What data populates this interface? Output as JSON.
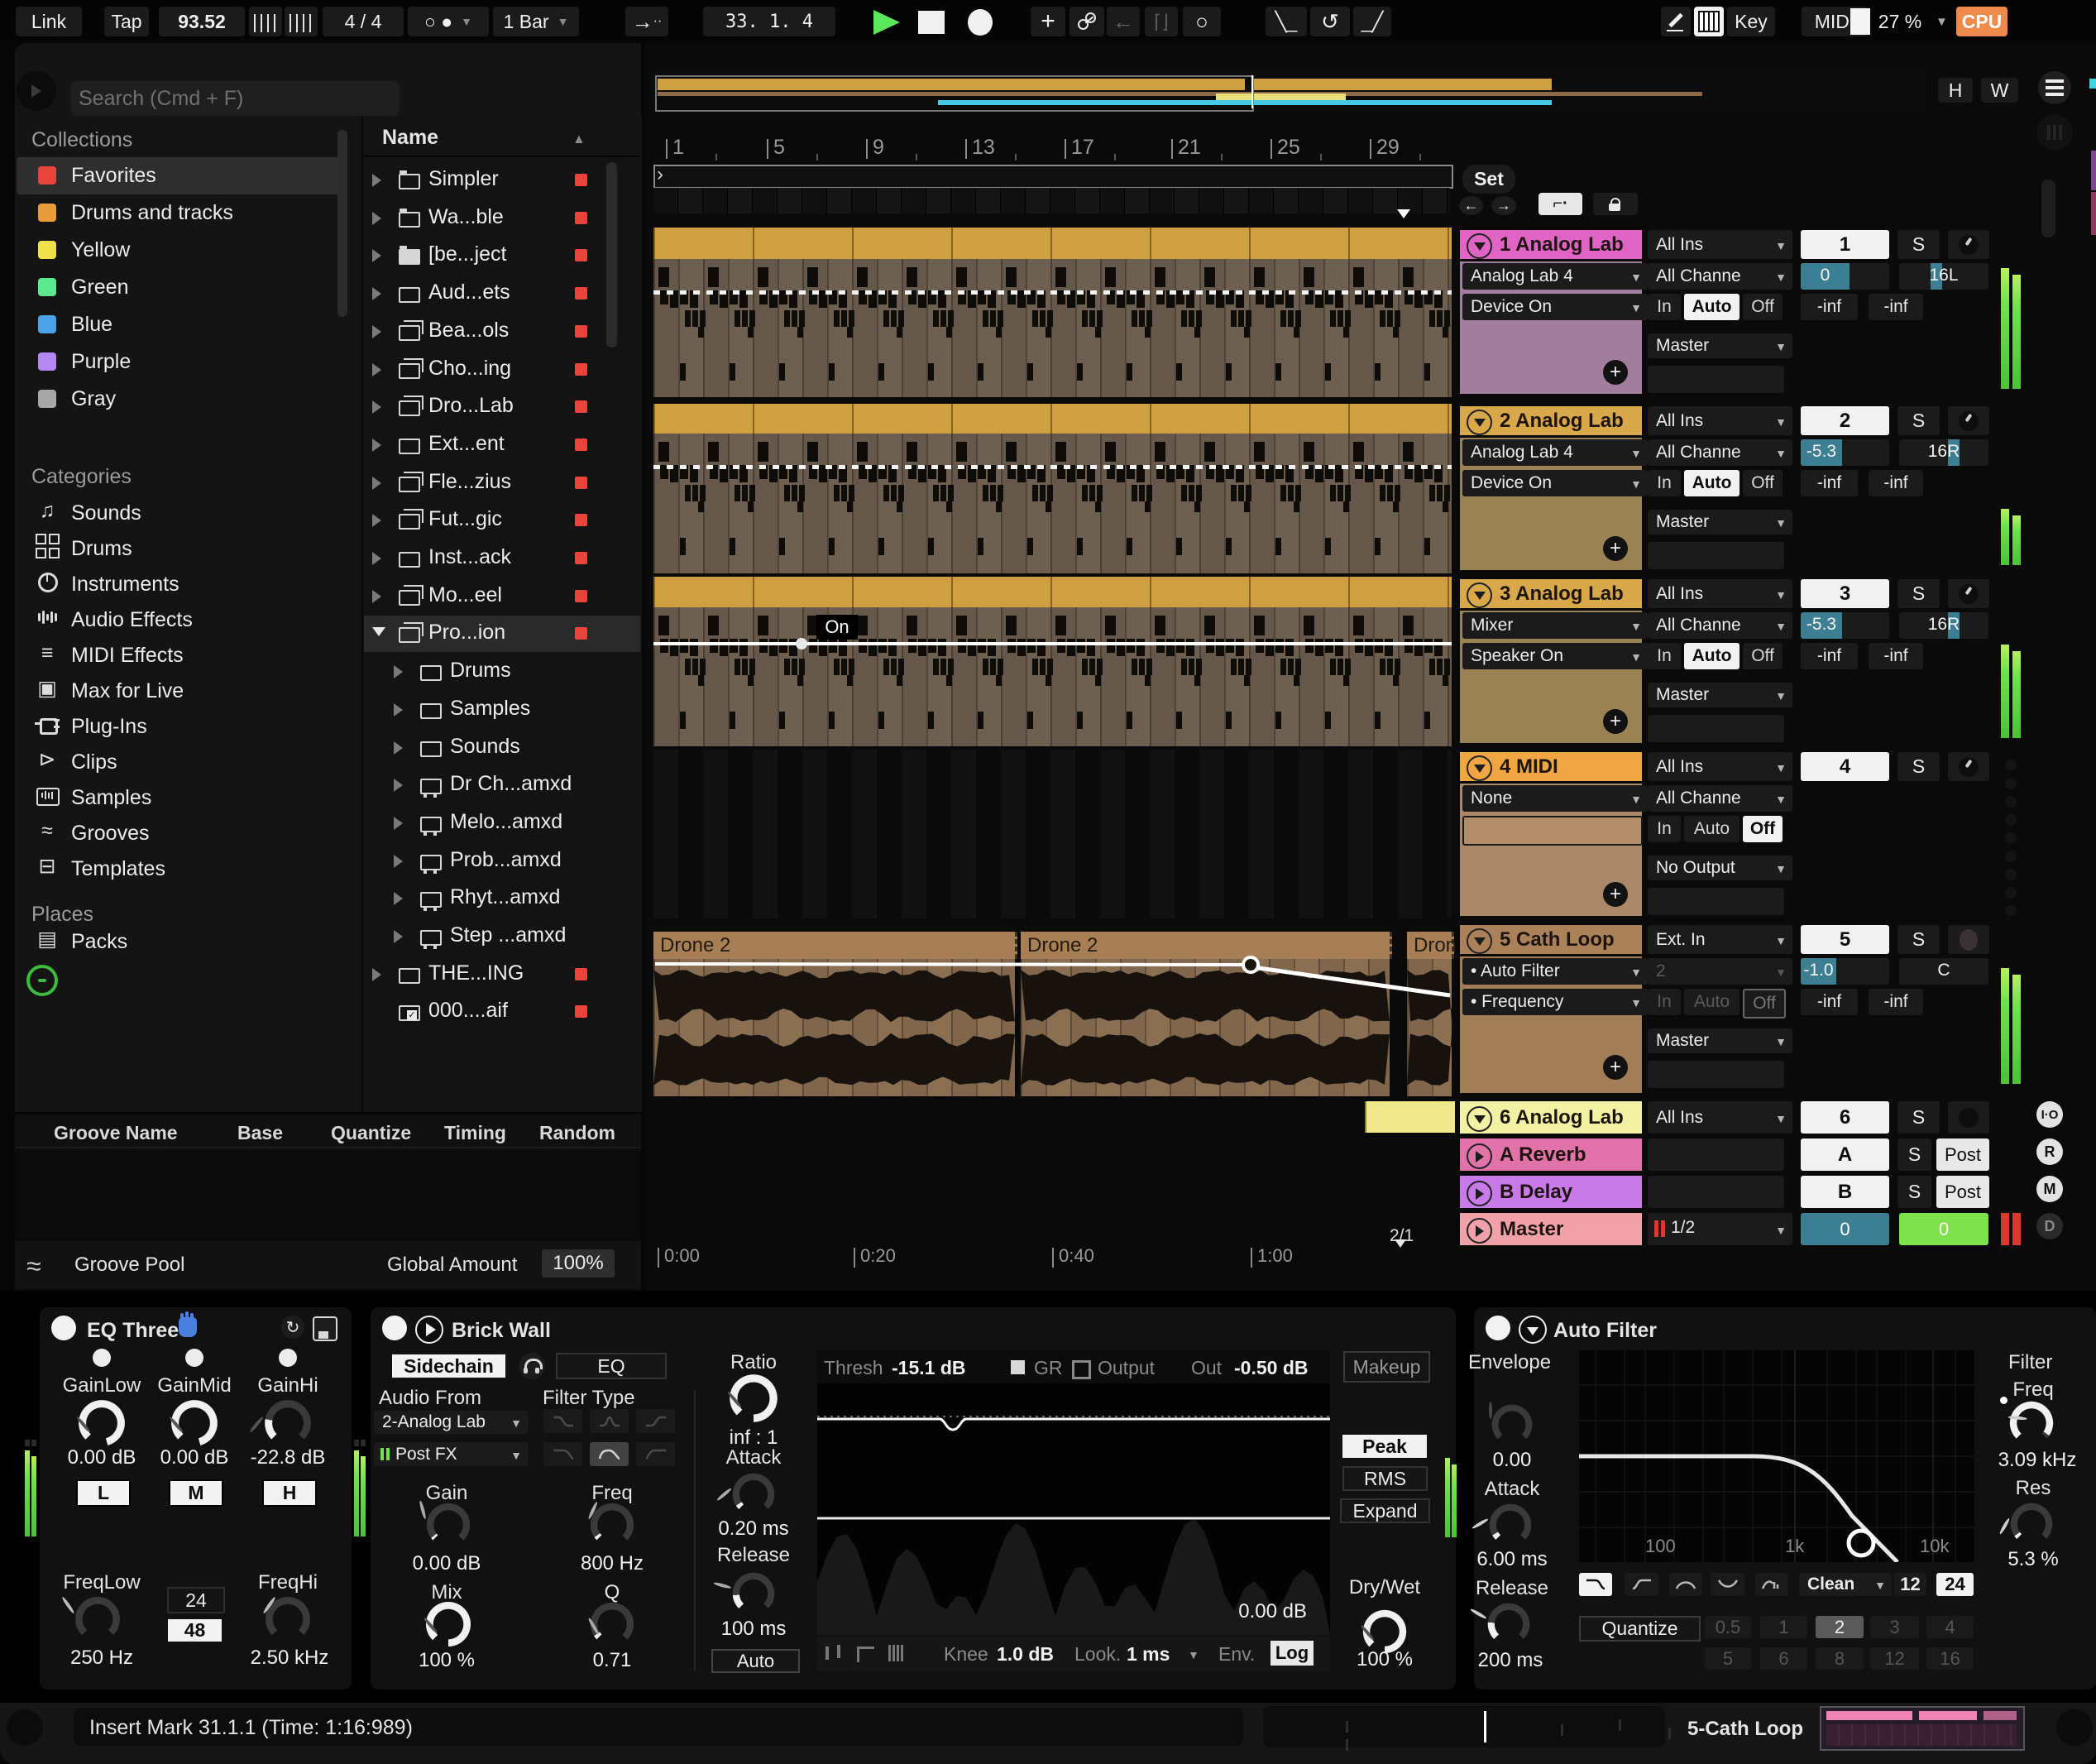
{
  "toolbar": {
    "link": "Link",
    "tap": "Tap",
    "tempo": "93.52",
    "time_sig": "4 / 4",
    "metronome": "○ ●",
    "quantize": "1 Bar",
    "position": "33.   1.   4",
    "key_label": "Key",
    "midi_label": "MIDI",
    "midi_pct": "27 %",
    "cpu_label": "CPU",
    "h": "H",
    "w": "W"
  },
  "browser": {
    "search_placeholder": "Search (Cmd + F)",
    "collections_label": "Collections",
    "collections": [
      {
        "label": "Favorites",
        "color": "#e8443c",
        "selected": true
      },
      {
        "label": "Drums and tracks",
        "color": "#e89c3c",
        "selected": false
      },
      {
        "label": "Yellow",
        "color": "#f0e04a",
        "selected": false
      },
      {
        "label": "Green",
        "color": "#5ce88f",
        "selected": false
      },
      {
        "label": "Blue",
        "color": "#4aa3e8",
        "selected": false
      },
      {
        "label": "Purple",
        "color": "#b388f0",
        "selected": false
      },
      {
        "label": "Gray",
        "color": "#a8a8a8",
        "selected": false
      }
    ],
    "categories_label": "Categories",
    "categories": [
      {
        "label": "Sounds",
        "icon": "notes"
      },
      {
        "label": "Drums",
        "icon": "grid"
      },
      {
        "label": "Instruments",
        "icon": "dial"
      },
      {
        "label": "Audio Effects",
        "icon": "wave"
      },
      {
        "label": "MIDI Effects",
        "icon": "lines"
      },
      {
        "label": "Max for Live",
        "icon": "max"
      },
      {
        "label": "Plug-Ins",
        "icon": "plug"
      },
      {
        "label": "Clips",
        "icon": "clip"
      },
      {
        "label": "Samples",
        "icon": "sample"
      },
      {
        "label": "Grooves",
        "icon": "groove"
      },
      {
        "label": "Templates",
        "icon": "template"
      }
    ],
    "places_label": "Places",
    "places": [
      {
        "label": "Packs",
        "icon": "pack"
      }
    ],
    "tree_header": "Name",
    "tree": [
      {
        "label": "Simpler",
        "icon": "tab",
        "indent": 0,
        "tag": true
      },
      {
        "label": "Wa...ble",
        "icon": "tab",
        "indent": 0,
        "tag": true
      },
      {
        "label": "[be...ject",
        "icon": "filled",
        "indent": 0,
        "tag": true
      },
      {
        "label": "Aud...ets",
        "icon": "plain",
        "indent": 0,
        "tag": true
      },
      {
        "label": "Bea...ols",
        "icon": "stack",
        "indent": 0,
        "tag": true
      },
      {
        "label": "Cho...ing",
        "icon": "stack",
        "indent": 0,
        "tag": true
      },
      {
        "label": "Dro...Lab",
        "icon": "stack",
        "indent": 0,
        "tag": true
      },
      {
        "label": "Ext...ent",
        "icon": "plain",
        "indent": 0,
        "tag": true
      },
      {
        "label": "Fle...zius",
        "icon": "stack",
        "indent": 0,
        "tag": true
      },
      {
        "label": "Fut...gic",
        "icon": "stack",
        "indent": 0,
        "tag": true
      },
      {
        "label": "Inst...ack",
        "icon": "plain",
        "indent": 0,
        "tag": true
      },
      {
        "label": "Mo...eel",
        "icon": "stack",
        "indent": 0,
        "tag": true
      },
      {
        "label": "Pro...ion",
        "icon": "stack",
        "indent": 0,
        "tag": true,
        "expanded": true,
        "selected": true
      },
      {
        "label": "Drums",
        "icon": "plain",
        "indent": 1,
        "tag": false
      },
      {
        "label": "Samples",
        "icon": "plain",
        "indent": 1,
        "tag": false
      },
      {
        "label": "Sounds",
        "icon": "plain",
        "indent": 1,
        "tag": false
      },
      {
        "label": "Dr Ch...amxd",
        "icon": "dev",
        "indent": 1,
        "tag": false
      },
      {
        "label": "Melo...amxd",
        "icon": "dev",
        "indent": 1,
        "tag": false
      },
      {
        "label": "Prob...amxd",
        "icon": "dev",
        "indent": 1,
        "tag": false
      },
      {
        "label": "Rhyt...amxd",
        "icon": "dev",
        "indent": 1,
        "tag": false
      },
      {
        "label": "Step ...amxd",
        "icon": "dev",
        "indent": 1,
        "tag": false
      },
      {
        "label": "THE...ING",
        "icon": "plain",
        "indent": 0,
        "tag": true
      },
      {
        "label": "000....aif",
        "icon": "aud",
        "indent": 0,
        "tag": true
      }
    ]
  },
  "groove": {
    "headers": [
      "Groove Name",
      "Base",
      "Quantize",
      "Timing",
      "Random"
    ],
    "pool": "Groove Pool",
    "global_amount_label": "Global Amount",
    "global_amount": "100%"
  },
  "arrangement": {
    "ruler": [
      "1",
      "5",
      "9",
      "13",
      "17",
      "21",
      "25",
      "29"
    ],
    "set": "Set",
    "times": [
      "0:00",
      "0:20",
      "0:40",
      "1:00"
    ],
    "pos_indicator": "2/1",
    "on": "On",
    "clips": [
      "Drone 2",
      "Drone 2",
      "Dron"
    ]
  },
  "monitor_options": [
    "In",
    "Auto",
    "Off"
  ],
  "tracks": [
    {
      "num": "1",
      "name": "1 Analog Lab",
      "header": "#df64c4",
      "body": "#a27d9d",
      "slots": [
        "Analog Lab 4",
        "Device On"
      ],
      "input": "All Ins",
      "channel": "All Channe",
      "monitor": "Auto",
      "output": "Master",
      "vol": "0",
      "vol_fill": 0.55,
      "pan": "16L",
      "pan_pos": 0.35,
      "meters": [
        "-inf",
        "-inf"
      ],
      "level": 0.97,
      "arm": "knob",
      "dim_io": false
    },
    {
      "num": "2",
      "name": "2 Analog Lab",
      "header": "#d8a84b",
      "body": "#9b8254",
      "slots": [
        "Analog Lab 4",
        "Device On"
      ],
      "input": "All Ins",
      "channel": "All Channe",
      "monitor": "Auto",
      "output": "Master",
      "vol": "-5.3",
      "vol_fill": 0.47,
      "pan": "16R",
      "pan_pos": 0.55,
      "meters": [
        "-inf",
        "-inf"
      ],
      "level": 0.45,
      "arm": "knob",
      "dim_io": false
    },
    {
      "num": "3",
      "name": "3 Analog Lab",
      "header": "#d8a84b",
      "body": "#9b8254",
      "slots": [
        "Mixer",
        "Speaker On"
      ],
      "input": "All Ins",
      "channel": "All Channe",
      "monitor": "Auto",
      "output": "Master",
      "vol": "-5.3",
      "vol_fill": 0.47,
      "pan": "16R",
      "pan_pos": 0.55,
      "meters": [
        "-inf",
        "-inf"
      ],
      "level": 0.75,
      "arm": "knob",
      "dim_io": false
    },
    {
      "num": "4",
      "name": "4 MIDI",
      "header": "#f0a642",
      "body": "#aa8969",
      "slots": [
        "None",
        ""
      ],
      "input": "All Ins",
      "channel": "All Channe",
      "monitor": "Off",
      "output": "No Output",
      "vol": null,
      "vol_fill": 0,
      "pan": null,
      "pan_pos": null,
      "meters": null,
      "level": 0,
      "arm": "knob",
      "dim_io": false
    },
    {
      "num": "5",
      "name": "5 Cath Loop",
      "header": "#aa8158",
      "body": "#a27d58",
      "slots": [
        "• Auto Filter",
        "• Frequency"
      ],
      "input": "Ext. In",
      "channel": "2",
      "monitor": "Off",
      "output": "Master",
      "vol": "-1.0",
      "vol_fill": 0.4,
      "pan": "C",
      "pan_pos": null,
      "meters": [
        "-inf",
        "-inf"
      ],
      "level": 0.93,
      "arm": "record",
      "dim_io": true
    }
  ],
  "track6": {
    "num": "6",
    "name": "6 Analog Lab",
    "header": "#f3f2a4",
    "input": "All Ins",
    "solo": "S"
  },
  "returns": [
    {
      "name": "A Reverb",
      "color": "#e273aa",
      "num": "A",
      "solo": "S",
      "post": "Post"
    },
    {
      "name": "B Delay",
      "color": "#c87ae8",
      "num": "B",
      "solo": "S",
      "post": "Post"
    }
  ],
  "master": {
    "name": "Master",
    "color": "#f1a2a9",
    "routing": "1/2",
    "vol": "0",
    "cue": "0"
  },
  "side_buttons": [
    "I·O",
    "R",
    "M",
    "D"
  ],
  "devices": {
    "eq3": {
      "title": "EQ Three",
      "bands": [
        {
          "label": "GainLow",
          "value": "0.00 dB",
          "band": "L"
        },
        {
          "label": "GainMid",
          "value": "0.00 dB",
          "band": "M"
        },
        {
          "label": "GainHi",
          "value": "-22.8 dB",
          "band": "H"
        }
      ],
      "freq_low_label": "FreqLow",
      "freq_low": "250 Hz",
      "slope_24": "24",
      "slope_48": "48",
      "freq_hi_label": "FreqHi",
      "freq_hi": "2.50 kHz"
    },
    "brick": {
      "title": "Brick Wall",
      "sidechain": "Sidechain",
      "eq": "EQ",
      "audio_from_label": "Audio From",
      "audio_from": "2-Analog Lab",
      "routing": "Post FX",
      "filter_type_label": "Filter Type",
      "gain_label": "Gain",
      "gain": "0.00 dB",
      "mix_label": "Mix",
      "mix": "100 %",
      "freq_label": "Freq",
      "freq": "800 Hz",
      "q_label": "Q",
      "q": "0.71",
      "ratio_label": "Ratio",
      "ratio": "inf : 1",
      "attack_label": "Attack",
      "attack": "0.20 ms",
      "release_label": "Release",
      "release": "100 ms",
      "auto": "Auto",
      "thresh_label": "Thresh",
      "thresh": "-15.1 dB",
      "gr": "GR",
      "output_label": "Output",
      "out_label": "Out",
      "out": "-0.50 dB",
      "floor": "0.00 dB",
      "knee_label": "Knee",
      "knee": "1.0 dB",
      "look_label": "Look.",
      "look": "1 ms",
      "env_label": "Env.",
      "env": "Log",
      "makeup": "Makeup",
      "peak": "Peak",
      "rms": "RMS",
      "expand": "Expand",
      "drywet_label": "Dry/Wet",
      "drywet": "100 %"
    },
    "autofilter": {
      "title": "Auto Filter",
      "envelope_label": "Envelope",
      "amount": "0.00",
      "attack_label": "Attack",
      "attack": "6.00 ms",
      "release_label": "Release",
      "release": "200 ms",
      "axis": [
        "100",
        "1k",
        "10k"
      ],
      "filter_label": "Filter",
      "freq_label": "Freq",
      "freq": "3.09 kHz",
      "res_label": "Res",
      "res": "5.3 %",
      "circuit": "Clean",
      "slope_12": "12",
      "slope_24": "24",
      "quantize_label": "Quantize",
      "quant_row1": [
        "0.5",
        "1",
        "2",
        "3",
        "4"
      ],
      "quant_row2": [
        "5",
        "6",
        "8",
        "12",
        "16"
      ],
      "quant_active": "2"
    }
  },
  "statusbar": {
    "message": "Insert Mark 31.1.1 (Time: 1:16:989)",
    "clip": "5-Cath Loop"
  }
}
